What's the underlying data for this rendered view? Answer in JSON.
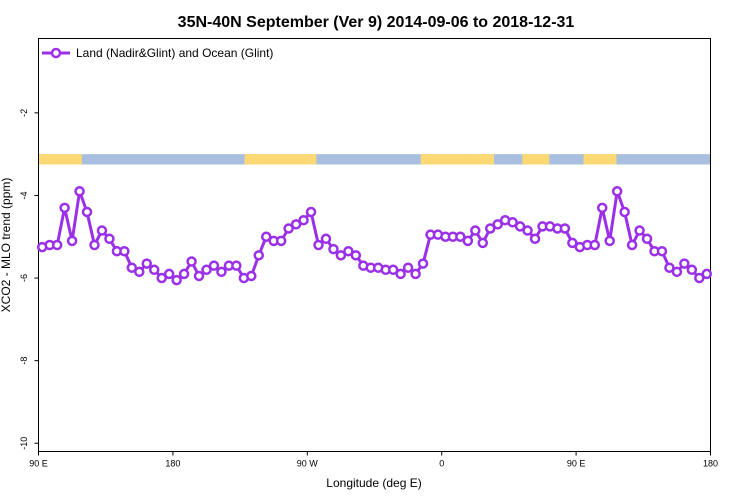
{
  "chart_data": {
    "type": "line",
    "title": "35N-40N September (Ver 9)   2014-09-06 to 2018-12-31",
    "xlabel": "Longitude (deg E)",
    "ylabel": "XCO2 - MLO trend (ppm)",
    "xlim": [
      90,
      540
    ],
    "ylim": [
      -10.2,
      -0.2
    ],
    "xticks": [
      {
        "value": 90,
        "label": "90 E"
      },
      {
        "value": 180,
        "label": "180"
      },
      {
        "value": 270,
        "label": "90 W"
      },
      {
        "value": 360,
        "label": "0"
      },
      {
        "value": 450,
        "label": "90 E"
      },
      {
        "value": 540,
        "label": "180"
      }
    ],
    "yticks": [
      {
        "value": -2,
        "label": "-2"
      },
      {
        "value": -4,
        "label": "-4"
      },
      {
        "value": -6,
        "label": "-6"
      },
      {
        "value": -8,
        "label": "-8"
      },
      {
        "value": -10,
        "label": "-10"
      }
    ],
    "grid": false,
    "legend_position": "top-left",
    "series": [
      {
        "name": "Land (Nadir&Glint) and Ocean (Glint)",
        "color": "#9b30e8",
        "x": [
          92.5,
          97.5,
          102.5,
          107.5,
          112.5,
          117.5,
          122.5,
          127.5,
          132.5,
          137.5,
          142.5,
          147.5,
          152.5,
          157.5,
          162.5,
          167.5,
          172.5,
          177.5,
          182.5,
          187.5,
          192.5,
          197.5,
          202.5,
          207.5,
          212.5,
          217.5,
          222.5,
          227.5,
          232.5,
          237.5,
          242.5,
          247.5,
          252.5,
          257.5,
          262.5,
          267.5,
          272.5,
          277.5,
          282.5,
          287.5,
          292.5,
          297.5,
          302.5,
          307.5,
          312.5,
          317.5,
          322.5,
          327.5,
          332.5,
          337.5,
          342.5,
          347.5,
          352.5,
          357.5,
          362.5,
          367.5,
          372.5,
          377.5,
          382.5,
          387.5,
          392.5,
          397.5,
          402.5,
          407.5,
          412.5,
          417.5,
          422.5,
          427.5,
          432.5,
          437.5,
          442.5,
          447.5,
          452.5,
          457.5,
          462.5,
          467.5,
          472.5,
          477.5,
          482.5,
          487.5,
          492.5,
          497.5,
          502.5,
          507.5,
          512.5,
          517.5,
          522.5,
          527.5,
          532.5,
          537.5
        ],
        "y": [
          -5.25,
          -5.2,
          -5.2,
          -4.3,
          -5.1,
          -3.9,
          -4.4,
          -5.2,
          -4.85,
          -5.05,
          -5.35,
          -5.35,
          -5.75,
          -5.85,
          -5.65,
          -5.8,
          -6.0,
          -5.9,
          -6.05,
          -5.9,
          -5.6,
          -5.95,
          -5.8,
          -5.7,
          -5.85,
          -5.7,
          -5.7,
          -6.0,
          -5.95,
          -5.45,
          -5.0,
          -5.1,
          -5.1,
          -4.8,
          -4.7,
          -4.6,
          -4.4,
          -5.2,
          -5.05,
          -5.3,
          -5.45,
          -5.35,
          -5.45,
          -5.7,
          -5.75,
          -5.75,
          -5.8,
          -5.8,
          -5.9,
          -5.75,
          -5.9,
          -5.65,
          -4.95,
          -4.95,
          -5.0,
          -5.0,
          -5.0,
          -5.1,
          -4.85,
          -5.15,
          -4.8,
          -4.7,
          -4.6,
          -4.65,
          -4.75,
          -4.85,
          -5.05,
          -4.75,
          -4.75,
          -4.8,
          -4.8,
          -5.15,
          -5.25,
          -5.2,
          -5.2,
          -4.3,
          -5.1,
          -3.9,
          -4.4,
          -5.2,
          -4.85,
          -5.05,
          -5.35,
          -5.35,
          -5.75,
          -5.85,
          -5.65,
          -5.8,
          -6.0,
          -5.9
        ]
      }
    ],
    "land_ocean_band": {
      "y_top": -3.0,
      "y_bottom": -3.25,
      "land_color": "#fdd974",
      "ocean_color": "#a9bfe0",
      "land_ranges": [
        [
          90,
          119
        ],
        [
          228,
          276
        ],
        [
          346,
          379
        ],
        [
          379,
          395
        ],
        [
          414,
          432
        ],
        [
          455,
          477
        ]
      ]
    }
  }
}
